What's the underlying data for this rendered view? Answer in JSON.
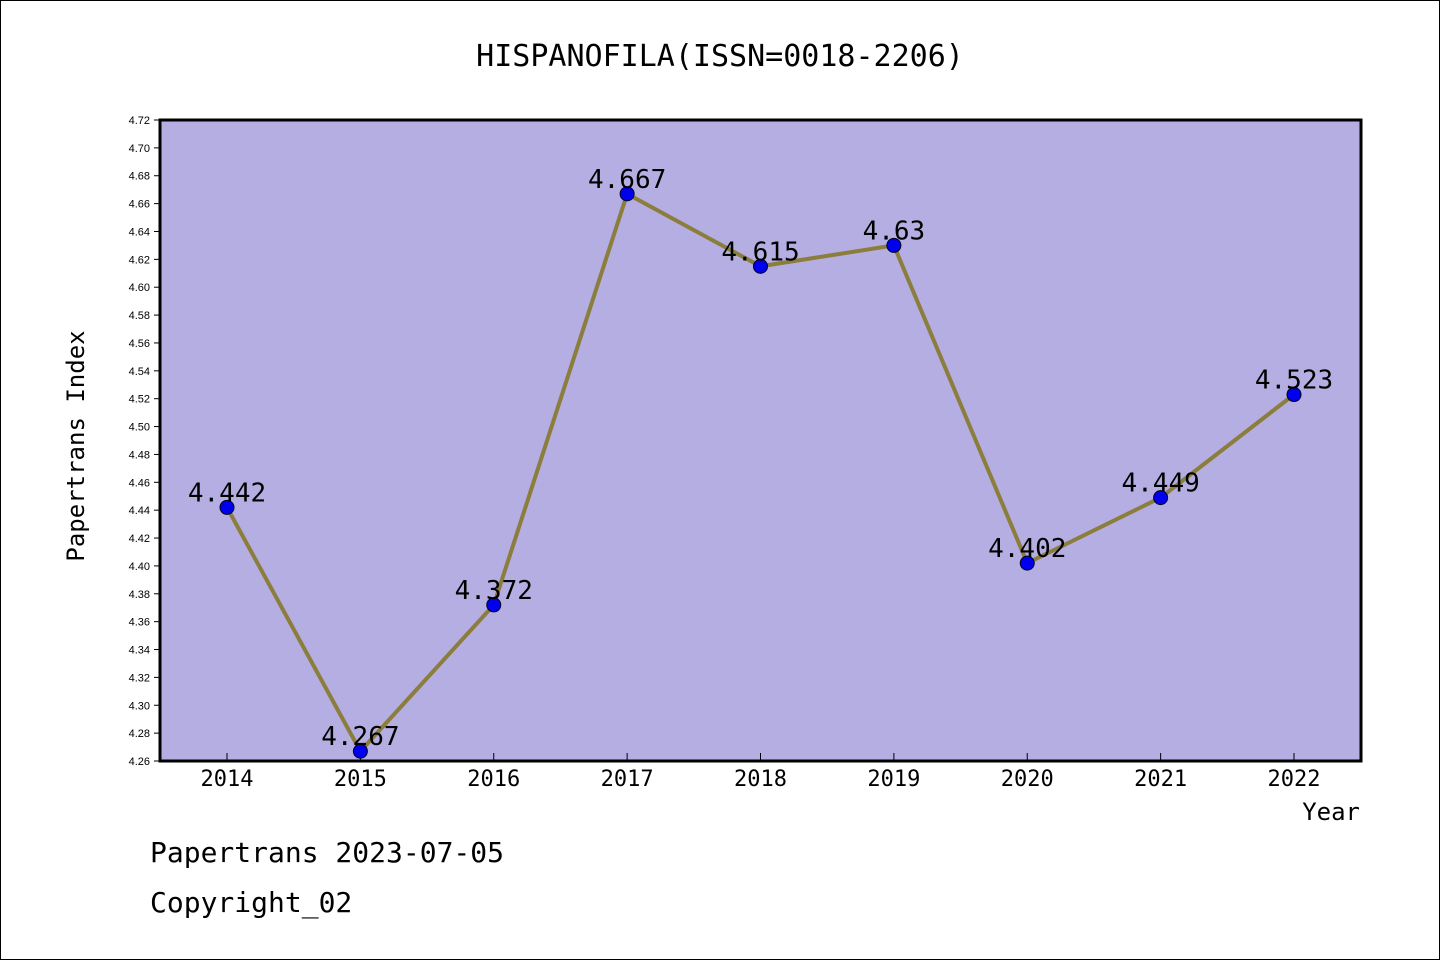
{
  "chart_data": {
    "type": "line",
    "title": "HISPANOFILA(ISSN=0018-2206)",
    "xlabel": "Year",
    "ylabel": "Papertrans Index",
    "categories": [
      "2014",
      "2015",
      "2016",
      "2017",
      "2018",
      "2019",
      "2020",
      "2021",
      "2022"
    ],
    "series": [
      {
        "values": [
          4.442,
          4.267,
          4.372,
          4.667,
          4.615,
          4.63,
          4.402,
          4.449,
          4.523
        ]
      }
    ],
    "data_labels": [
      "4.442",
      "4.267",
      "4.372",
      "4.667",
      "4.615",
      "4.63",
      "4.402",
      "4.449",
      "4.523"
    ],
    "ylim": [
      4.26,
      4.72
    ],
    "yticks": [
      "4.26",
      "4.28",
      "4.30",
      "4.32",
      "4.34",
      "4.36",
      "4.38",
      "4.40",
      "4.42",
      "4.44",
      "4.46",
      "4.48",
      "4.50",
      "4.52",
      "4.54",
      "4.56",
      "4.58",
      "4.60",
      "4.62",
      "4.64",
      "4.66",
      "4.68",
      "4.70",
      "4.72"
    ],
    "grid": false,
    "legend": "none",
    "colors": {
      "plot_background": "#b4aee2",
      "line": "#8b7d3c",
      "marker": "#0000ee"
    }
  },
  "footer": {
    "date_line": "Papertrans 2023-07-05",
    "copyright_line": "Copyright_02"
  }
}
